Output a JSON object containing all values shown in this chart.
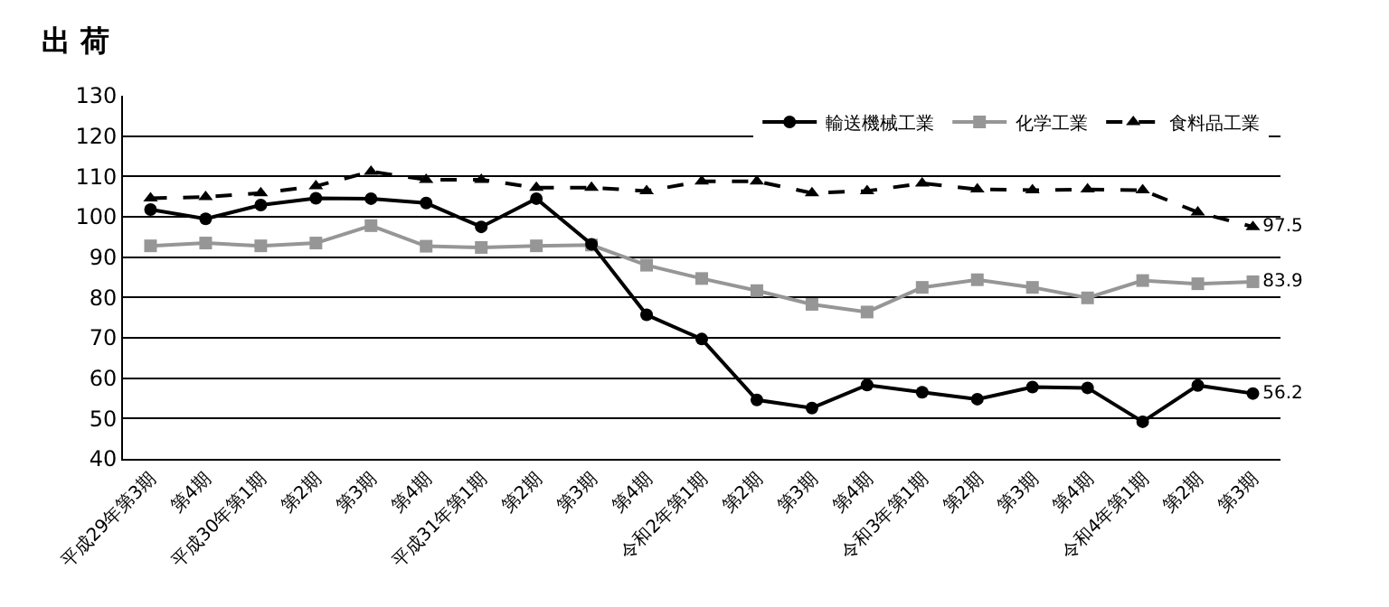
{
  "chart_data": {
    "type": "line",
    "title": "出 荷",
    "categories": [
      "平成29年第3期",
      "第4期",
      "平成30年第1期",
      "第2期",
      "第3期",
      "第4期",
      "平成31年第1期",
      "第2期",
      "第3期",
      "第4期",
      "令和2年第1期",
      "第2期",
      "第3期",
      "第4期",
      "令和3年第1期",
      "第2期",
      "第3期",
      "第4期",
      "令和4年第1期",
      "第2期",
      "第3期"
    ],
    "series": [
      {
        "name": "輸送機械工業",
        "color": "#000000",
        "marker": "circle",
        "line_style": "solid",
        "values": [
          101.8,
          99.5,
          102.9,
          104.6,
          104.5,
          103.4,
          97.5,
          104.5,
          93.2,
          75.7,
          69.7,
          54.6,
          52.6,
          58.3,
          56.5,
          54.8,
          57.8,
          57.6,
          49.2,
          58.2,
          56.2
        ],
        "value_labels": [
          null,
          null,
          null,
          null,
          null,
          null,
          null,
          null,
          null,
          null,
          null,
          null,
          null,
          null,
          null,
          null,
          null,
          null,
          null,
          null,
          "56.2"
        ]
      },
      {
        "name": "化学工業",
        "color": "#969696",
        "marker": "square",
        "line_style": "solid",
        "values": [
          92.8,
          93.5,
          92.8,
          93.5,
          97.8,
          92.7,
          92.4,
          92.8,
          93.0,
          88.0,
          84.7,
          81.7,
          78.3,
          76.4,
          82.5,
          84.4,
          82.5,
          79.9,
          84.2,
          83.4,
          83.9
        ],
        "value_labels": [
          null,
          null,
          null,
          null,
          null,
          null,
          null,
          null,
          null,
          null,
          null,
          null,
          null,
          null,
          null,
          null,
          null,
          null,
          null,
          null,
          "83.9"
        ]
      },
      {
        "name": "食料品工業",
        "color": "#000000",
        "marker": "triangle",
        "line_style": "dashed",
        "values": [
          104.6,
          104.9,
          105.9,
          107.6,
          111.2,
          109.2,
          109.2,
          107.2,
          107.2,
          106.4,
          108.8,
          108.8,
          105.9,
          106.4,
          108.3,
          106.8,
          106.6,
          106.8,
          106.6,
          101.1,
          97.5
        ],
        "value_labels": [
          null,
          null,
          null,
          null,
          null,
          null,
          null,
          null,
          null,
          null,
          null,
          null,
          null,
          null,
          null,
          null,
          null,
          null,
          null,
          null,
          "97.5"
        ]
      }
    ],
    "ylim": [
      40,
      130
    ],
    "yticks": [
      40,
      50,
      60,
      70,
      80,
      90,
      100,
      110,
      120,
      130
    ],
    "grid": "y",
    "legend": "top right"
  }
}
